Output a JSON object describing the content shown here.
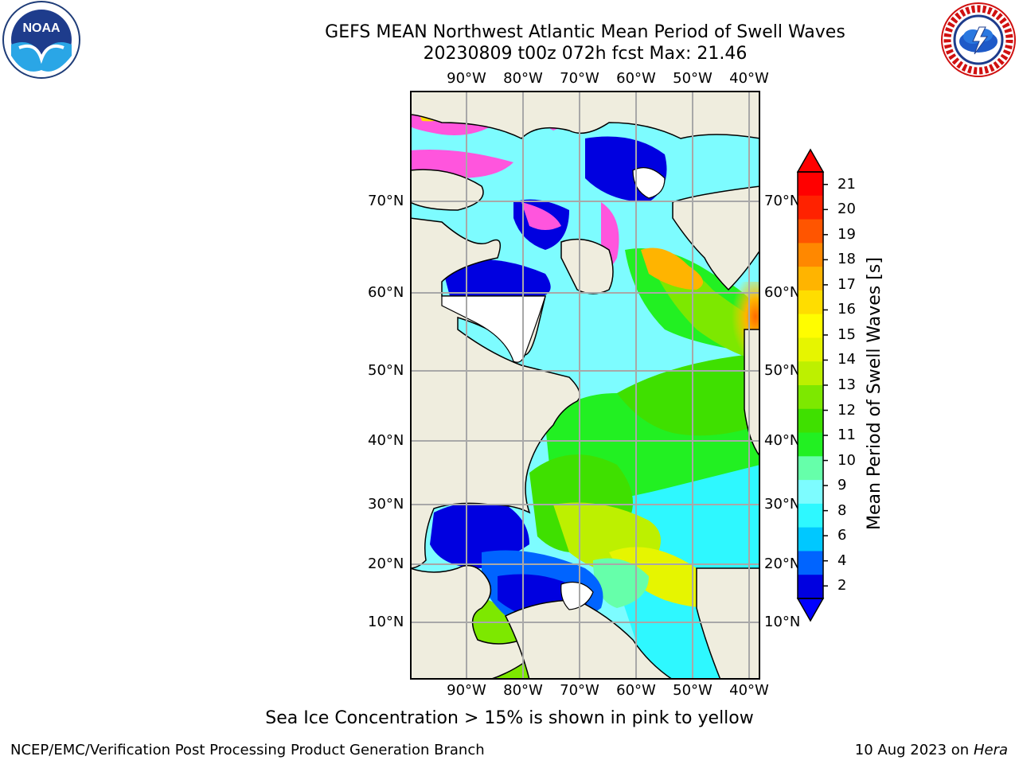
{
  "header": {
    "title_line1": "GEFS MEAN Northwest Atlantic Mean Period of Swell Waves",
    "title_line2": "20230809 t00z 072h fcst   Max: 21.46"
  },
  "logos": {
    "left": {
      "icon": "noaa-logo-icon",
      "text": "NOAA"
    },
    "right": {
      "icon": "nws-logo-icon",
      "text": "NATIONAL WEATHER SERVICE"
    }
  },
  "map": {
    "region": "Northwest Atlantic",
    "lon_labels": [
      "90°W",
      "80°W",
      "70°W",
      "60°W",
      "50°W",
      "40°W"
    ],
    "lat_labels": [
      "70°N",
      "60°N",
      "50°N",
      "40°N",
      "30°N",
      "20°N",
      "10°N"
    ],
    "colors": {
      "land": "#efedde",
      "ice_land": "#ffffff",
      "coast": "#000000",
      "grid": "#a8a8a8"
    }
  },
  "colorbar": {
    "label": "Mean Period of Swell Waves [s]",
    "ticks": [
      "2",
      "4",
      "6",
      "8",
      "9",
      "10",
      "11",
      "12",
      "13",
      "14",
      "15",
      "16",
      "17",
      "18",
      "19",
      "20",
      "21"
    ],
    "colors": [
      "#0000e0",
      "#0064ff",
      "#00c8ff",
      "#2ef8ff",
      "#7dfcff",
      "#66ffaa",
      "#22f022",
      "#3fe000",
      "#7de800",
      "#bdf000",
      "#e6f500",
      "#fffd00",
      "#ffdd00",
      "#ffb400",
      "#ff8800",
      "#ff5500",
      "#ff2200",
      "#ff0000"
    ],
    "under_color": "#0000ff",
    "over_color": "#ff0000"
  },
  "note": "Sea Ice Concentration > 15% is shown in pink to yellow",
  "footer": {
    "left": "NCEP/EMC/Verification Post Processing Product Generation Branch",
    "right_date": "10 Aug 2023 on",
    "right_machine": "Hera"
  }
}
